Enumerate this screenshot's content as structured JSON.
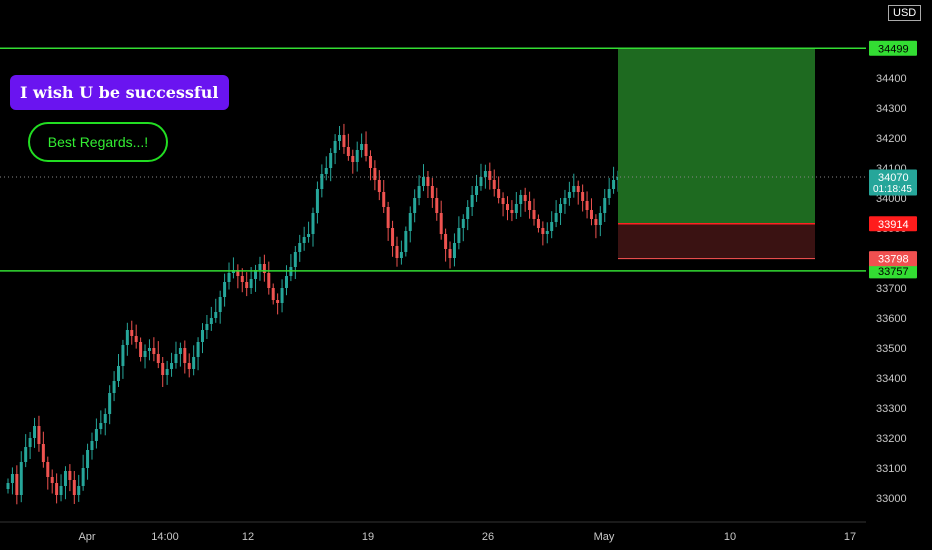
{
  "notes": {
    "callout_1": "I wish U be successful",
    "callout_2": "Best Regards...!"
  },
  "chart_data": {
    "type": "candlestick",
    "currency": "USD",
    "y_ticks": [
      33000,
      33100,
      33200,
      33300,
      33400,
      33500,
      33600,
      33700,
      33800,
      33900,
      34000,
      34100,
      34200,
      34300,
      34400
    ],
    "x_ticks": [
      "Apr",
      "14:00",
      "12",
      "19",
      "26",
      "May",
      "10",
      "17"
    ],
    "ylim": [
      32920,
      34660
    ],
    "horizontal_lines": [
      {
        "value": 34499,
        "label": "34499",
        "color": "#33dd33"
      },
      {
        "value": 33757,
        "label": "33757",
        "color": "#33dd33"
      }
    ],
    "price_labels": [
      {
        "value": 34070,
        "label": "34070",
        "sub": "01:18:45",
        "color": "#26a69a"
      },
      {
        "value": 33914,
        "label": "33914",
        "color": "#ff1c1c"
      },
      {
        "value": 33798,
        "label": "33798",
        "color": "#f05050"
      }
    ],
    "position": {
      "entry": 33914,
      "target": 34499,
      "stop": 33798,
      "profit_color": "#1e6a20",
      "loss_color": "#3a1212"
    },
    "candles_close": [
      33050,
      33080,
      33010,
      33120,
      33170,
      33200,
      33240,
      33180,
      33120,
      33070,
      33050,
      33010,
      33040,
      33090,
      33060,
      33010,
      33040,
      33100,
      33160,
      33190,
      33230,
      33250,
      33280,
      33350,
      33390,
      33440,
      33510,
      33560,
      33540,
      33520,
      33470,
      33490,
      33500,
      33480,
      33450,
      33410,
      33430,
      33450,
      33480,
      33500,
      33450,
      33430,
      33470,
      33520,
      33560,
      33580,
      33600,
      33620,
      33670,
      33720,
      33750,
      33760,
      33740,
      33720,
      33700,
      33730,
      33760,
      33780,
      33750,
      33700,
      33660,
      33650,
      33700,
      33740,
      33770,
      33820,
      33850,
      33870,
      33880,
      33950,
      34030,
      34080,
      34100,
      34150,
      34190,
      34210,
      34170,
      34140,
      34120,
      34160,
      34180,
      34140,
      34100,
      34060,
      34020,
      33970,
      33900,
      33840,
      33800,
      33820,
      33890,
      33950,
      34000,
      34040,
      34070,
      34040,
      34000,
      33950,
      33880,
      33830,
      33800,
      33850,
      33900,
      33930,
      33970,
      34010,
      34040,
      34070,
      34090,
      34060,
      34030,
      34000,
      33980,
      33960,
      33950,
      33980,
      34010,
      33990,
      33960,
      33930,
      33900,
      33880,
      33890,
      33920,
      33950,
      33980,
      34000,
      34020,
      34040,
      34020,
      33990,
      33960,
      33930,
      33910,
      33950,
      34000,
      34030,
      34060,
      34070
    ],
    "bullish_color": "#26a69a",
    "bearish_color": "#ef5350"
  }
}
